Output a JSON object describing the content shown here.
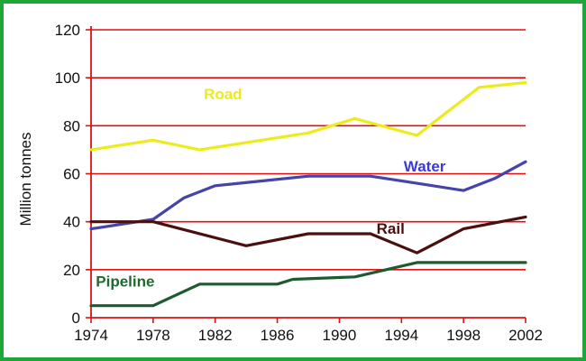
{
  "chart_data": {
    "type": "line",
    "title": "",
    "xlabel": "",
    "ylabel": "Million tonnes",
    "xlim": [
      1974,
      2002
    ],
    "ylim": [
      0,
      120
    ],
    "x_ticks": [
      1974,
      1978,
      1982,
      1986,
      1990,
      1994,
      1998,
      2002
    ],
    "y_ticks": [
      0,
      20,
      40,
      60,
      80,
      100,
      120
    ],
    "grid": true,
    "legend": "labels placed directly on lines",
    "colors": {
      "frame": "#1fa63a",
      "grid": "#e01010",
      "axis": "#e01010"
    },
    "series": [
      {
        "name": "Road",
        "color": "#ecec1c",
        "label_color": "#ecec1c",
        "label_at": [
          1982.5,
          91
        ],
        "points": [
          [
            1974,
            70
          ],
          [
            1978,
            74
          ],
          [
            1981,
            70
          ],
          [
            1984,
            73
          ],
          [
            1988,
            77
          ],
          [
            1991,
            83
          ],
          [
            1995,
            76
          ],
          [
            1999,
            96
          ],
          [
            2002,
            98
          ]
        ]
      },
      {
        "name": "Water",
        "color": "#4444aa",
        "label_color": "#3b3bd8",
        "label_at": [
          1995.5,
          61
        ],
        "points": [
          [
            1974,
            37
          ],
          [
            1978,
            41
          ],
          [
            1980,
            50
          ],
          [
            1982,
            55
          ],
          [
            1985,
            57
          ],
          [
            1988,
            59
          ],
          [
            1992,
            59
          ],
          [
            1995,
            56
          ],
          [
            1998,
            53
          ],
          [
            2000,
            58
          ],
          [
            2002,
            65
          ]
        ]
      },
      {
        "name": "Rail",
        "color": "#4a1010",
        "label_color": "#4a1010",
        "label_at": [
          1993.3,
          35
        ],
        "points": [
          [
            1974,
            40
          ],
          [
            1978,
            40
          ],
          [
            1984,
            30
          ],
          [
            1988,
            35
          ],
          [
            1992,
            35
          ],
          [
            1995,
            27
          ],
          [
            1998,
            37
          ],
          [
            2002,
            42
          ]
        ]
      },
      {
        "name": "Pipeline",
        "color": "#1e5a2e",
        "label_color": "#1e6a2e",
        "label_at": [
          1976.2,
          13
        ],
        "points": [
          [
            1974,
            5
          ],
          [
            1978,
            5
          ],
          [
            1981,
            14
          ],
          [
            1986,
            14
          ],
          [
            1987,
            16
          ],
          [
            1991,
            17
          ],
          [
            1995,
            23
          ],
          [
            2002,
            23
          ]
        ]
      }
    ]
  }
}
